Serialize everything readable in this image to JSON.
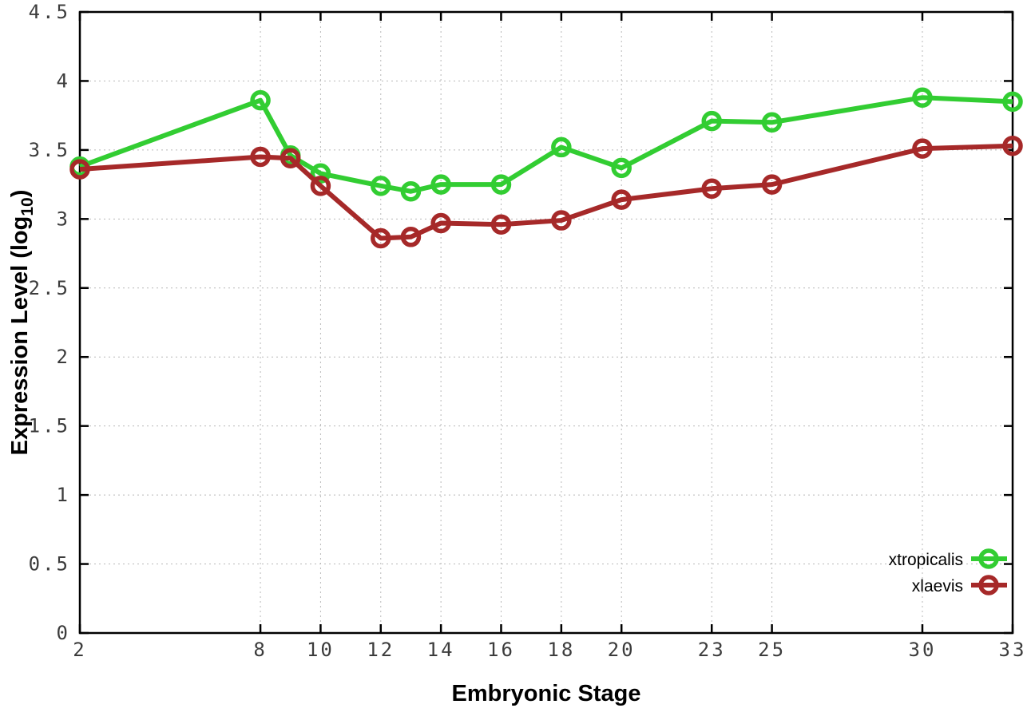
{
  "figure": {
    "background": "#ffffff",
    "axis_color": "#000000",
    "grid_color": "#b8b8b8",
    "tick_label_color": "#3c3c3c"
  },
  "chart_data": {
    "type": "line",
    "title": "",
    "xlabel": "Embryonic Stage",
    "ylabel": "Expression Level (log10)",
    "ylabel_parts": {
      "pre": "Expression Level (log",
      "sub": "10",
      "post": ")"
    },
    "xlim": [
      2,
      33
    ],
    "ylim": [
      0,
      4.5
    ],
    "xticks": [
      2,
      8,
      10,
      12,
      14,
      16,
      18,
      20,
      23,
      25,
      30,
      33
    ],
    "xtick_labels": [
      "2",
      "8",
      "10",
      "12",
      "14",
      "16",
      "18",
      "20",
      "23",
      "25",
      "30",
      "33"
    ],
    "yticks": [
      0,
      0.5,
      1,
      1.5,
      2,
      2.5,
      3,
      3.5,
      4,
      4.5
    ],
    "ytick_labels": [
      "0",
      "0.5",
      "1",
      "1.5",
      "2",
      "2.5",
      "3",
      "3.5",
      "4",
      "4.5"
    ],
    "grid": true,
    "legend_position": "bottom-right",
    "x": [
      2,
      8,
      9,
      10,
      12,
      13,
      14,
      16,
      18,
      20,
      23,
      25,
      30,
      33
    ],
    "series": [
      {
        "name": "xtropicalis",
        "color": "#32cd32",
        "values": [
          3.38,
          3.86,
          3.46,
          3.33,
          3.24,
          3.2,
          3.25,
          3.25,
          3.52,
          3.37,
          3.71,
          3.7,
          3.88,
          3.85
        ]
      },
      {
        "name": "xlaevis",
        "color": "#a62929",
        "values": [
          3.36,
          3.45,
          3.44,
          3.24,
          2.86,
          2.87,
          2.97,
          2.96,
          2.99,
          3.14,
          3.22,
          3.25,
          3.51,
          3.53
        ]
      }
    ]
  }
}
